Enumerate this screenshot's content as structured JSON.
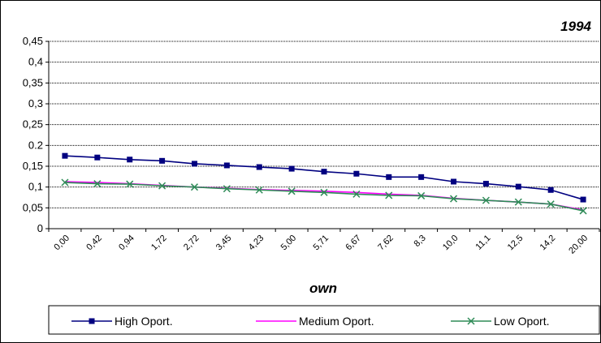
{
  "chart_data": {
    "type": "line",
    "title": "1994",
    "xlabel": "own",
    "ylabel": "",
    "ylim": [
      0,
      0.45
    ],
    "yticks": [
      "0",
      "0,05",
      "0,1",
      "0,15",
      "0.2",
      "0,25",
      "0,3",
      "0,35",
      "0,4",
      "0,45"
    ],
    "ytick_values": [
      0,
      0.05,
      0.1,
      0.15,
      0.2,
      0.25,
      0.3,
      0.35,
      0.4,
      0.45
    ],
    "grid": true,
    "legend_position": "bottom",
    "categories": [
      "0,00",
      "0,42",
      "0,94",
      "1,72",
      "2,72",
      "3,45",
      "4,23",
      "5,00",
      "5,71",
      "6,67",
      "7,62",
      "8,3",
      "10,0",
      "11,1",
      "12,5",
      "14,2",
      "20,00"
    ],
    "series": [
      {
        "name": "High Oport.",
        "color": "#000080",
        "marker": "square",
        "values": [
          0.175,
          0.171,
          0.166,
          0.163,
          0.156,
          0.152,
          0.148,
          0.144,
          0.137,
          0.132,
          0.124,
          0.124,
          0.113,
          0.108,
          0.101,
          0.093,
          0.07
        ]
      },
      {
        "name": "Medium Oport.",
        "color": "#ff00ff",
        "marker": "none",
        "values": [
          0.113,
          0.111,
          0.108,
          0.104,
          0.1,
          0.097,
          0.094,
          0.092,
          0.09,
          0.087,
          0.083,
          0.08,
          0.073,
          0.068,
          0.064,
          0.059,
          0.045
        ]
      },
      {
        "name": "Low Oport.",
        "color": "#2e8b57",
        "marker": "x",
        "values": [
          0.111,
          0.108,
          0.107,
          0.103,
          0.1,
          0.096,
          0.093,
          0.09,
          0.087,
          0.083,
          0.08,
          0.079,
          0.072,
          0.068,
          0.064,
          0.059,
          0.043
        ]
      }
    ]
  }
}
